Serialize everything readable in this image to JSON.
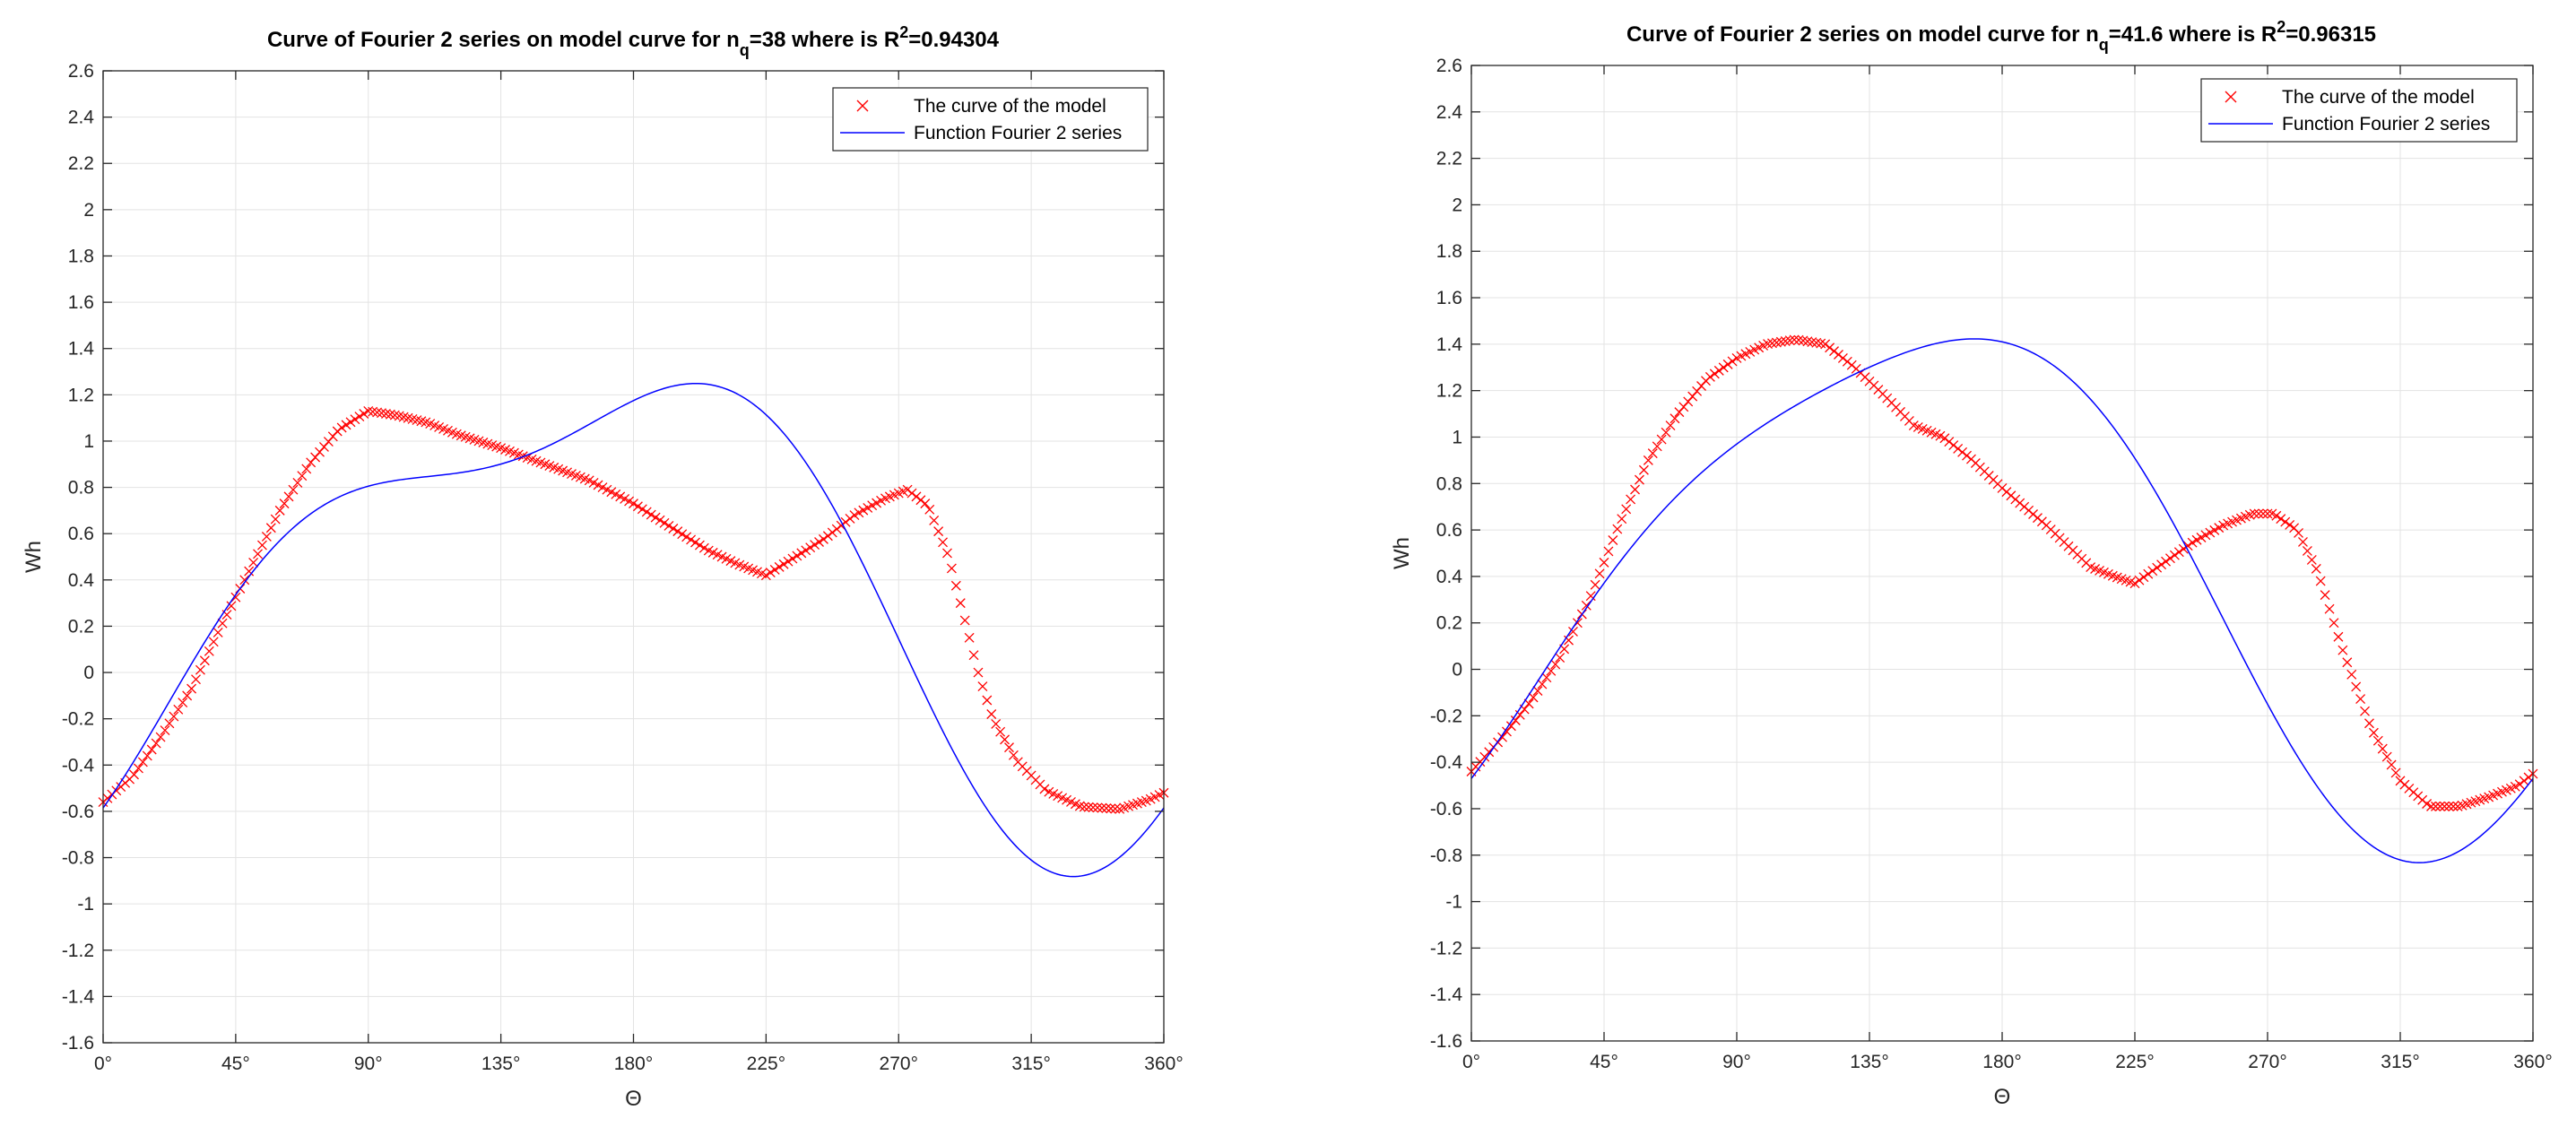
{
  "chart_data": [
    {
      "type": "line",
      "title": {
        "prefix": "Curve of Fourier 2 series on model curve for n",
        "subscript": "q",
        "middle": "=38 where is R",
        "superscript": "2",
        "suffix": "=0.94304"
      },
      "xlabel": "Θ",
      "ylabel": "Wh",
      "xlim": [
        0,
        360
      ],
      "ylim": [
        -1.6,
        2.6
      ],
      "xticks": [
        0,
        45,
        90,
        135,
        180,
        225,
        270,
        315,
        360
      ],
      "xtick_labels": [
        "0°",
        "45°",
        "90°",
        "135°",
        "180°",
        "225°",
        "270°",
        "315°",
        "360°"
      ],
      "yticks": [
        -1.6,
        -1.4,
        -1.2,
        -1,
        -0.8,
        -0.6,
        -0.4,
        -0.2,
        0,
        0.2,
        0.4,
        0.6,
        0.8,
        1,
        1.2,
        1.4,
        1.6,
        1.8,
        2,
        2.2,
        2.4,
        2.6
      ],
      "ytick_labels": [
        "-1.6",
        "-1.4",
        "-1.2",
        "-1",
        "-0.8",
        "-0.6",
        "-0.4",
        "-0.2",
        "0",
        "0.2",
        "0.4",
        "0.6",
        "0.8",
        "1",
        "1.2",
        "1.4",
        "1.6",
        "1.8",
        "2",
        "2.2",
        "2.4",
        "2.6"
      ],
      "grid": true,
      "legend_position": "top-right",
      "series": [
        {
          "name": "The curve of the model",
          "marker": "x",
          "color": "#ff0000",
          "x_range": [
            0,
            360
          ],
          "x_step": 1.5,
          "keypoints": [
            [
              0,
              -0.56
            ],
            [
              10,
              -0.45
            ],
            [
              20,
              -0.27
            ],
            [
              30,
              -0.07
            ],
            [
              40,
              0.2
            ],
            [
              50,
              0.45
            ],
            [
              60,
              0.7
            ],
            [
              70,
              0.9
            ],
            [
              80,
              1.05
            ],
            [
              90,
              1.13
            ],
            [
              100,
              1.11
            ],
            [
              110,
              1.08
            ],
            [
              120,
              1.03
            ],
            [
              135,
              0.97
            ],
            [
              150,
              0.9
            ],
            [
              165,
              0.83
            ],
            [
              180,
              0.73
            ],
            [
              195,
              0.61
            ],
            [
              205,
              0.53
            ],
            [
              215,
              0.47
            ],
            [
              225,
              0.42
            ],
            [
              235,
              0.5
            ],
            [
              245,
              0.58
            ],
            [
              255,
              0.68
            ],
            [
              265,
              0.75
            ],
            [
              273,
              0.79
            ],
            [
              280,
              0.72
            ],
            [
              287,
              0.5
            ],
            [
              292,
              0.25
            ],
            [
              297,
              0.0
            ],
            [
              302,
              -0.2
            ],
            [
              310,
              -0.38
            ],
            [
              320,
              -0.51
            ],
            [
              332,
              -0.58
            ],
            [
              345,
              -0.59
            ],
            [
              355,
              -0.55
            ],
            [
              360,
              -0.52
            ]
          ]
        },
        {
          "name": "Function Fourier 2 series",
          "color": "#0000ff",
          "fourier": {
            "a0": 0.385,
            "a1": -0.88,
            "b1": 0.33,
            "a2": -0.09,
            "b2": 0.34
          }
        }
      ]
    },
    {
      "type": "line",
      "title": {
        "prefix": "Curve of Fourier 2 series on model curve for n",
        "subscript": "q",
        "middle": "=41.6 where is R",
        "superscript": "2",
        "suffix": "=0.96315"
      },
      "xlabel": "Θ",
      "ylabel": "Wh",
      "xlim": [
        0,
        360
      ],
      "ylim": [
        -1.6,
        2.6
      ],
      "xticks": [
        0,
        45,
        90,
        135,
        180,
        225,
        270,
        315,
        360
      ],
      "xtick_labels": [
        "0°",
        "45°",
        "90°",
        "135°",
        "180°",
        "225°",
        "270°",
        "315°",
        "360°"
      ],
      "yticks": [
        -1.6,
        -1.4,
        -1.2,
        -1,
        -0.8,
        -0.6,
        -0.4,
        -0.2,
        0,
        0.2,
        0.4,
        0.6,
        0.8,
        1,
        1.2,
        1.4,
        1.6,
        1.8,
        2,
        2.2,
        2.4,
        2.6
      ],
      "ytick_labels": [
        "-1.6",
        "-1.4",
        "-1.2",
        "-1",
        "-0.8",
        "-0.6",
        "-0.4",
        "-0.2",
        "0",
        "0.2",
        "0.4",
        "0.6",
        "0.8",
        "1",
        "1.2",
        "1.4",
        "1.6",
        "1.8",
        "2",
        "2.2",
        "2.4",
        "2.6"
      ],
      "grid": true,
      "legend_position": "top-right",
      "series": [
        {
          "name": "The curve of the model",
          "marker": "x",
          "color": "#ff0000",
          "x_range": [
            0,
            360
          ],
          "x_step": 1.5,
          "keypoints": [
            [
              0,
              -0.44
            ],
            [
              10,
              -0.3
            ],
            [
              20,
              -0.14
            ],
            [
              30,
              0.05
            ],
            [
              40,
              0.3
            ],
            [
              50,
              0.62
            ],
            [
              60,
              0.9
            ],
            [
              70,
              1.1
            ],
            [
              80,
              1.25
            ],
            [
              90,
              1.34
            ],
            [
              100,
              1.4
            ],
            [
              110,
              1.42
            ],
            [
              120,
              1.4
            ],
            [
              130,
              1.3
            ],
            [
              140,
              1.18
            ],
            [
              150,
              1.05
            ],
            [
              160,
              1.0
            ],
            [
              170,
              0.9
            ],
            [
              180,
              0.78
            ],
            [
              195,
              0.62
            ],
            [
              210,
              0.44
            ],
            [
              218,
              0.4
            ],
            [
              225,
              0.37
            ],
            [
              235,
              0.46
            ],
            [
              245,
              0.55
            ],
            [
              255,
              0.62
            ],
            [
              265,
              0.67
            ],
            [
              272,
              0.67
            ],
            [
              280,
              0.6
            ],
            [
              287,
              0.42
            ],
            [
              295,
              0.1
            ],
            [
              305,
              -0.25
            ],
            [
              315,
              -0.48
            ],
            [
              325,
              -0.59
            ],
            [
              335,
              -0.59
            ],
            [
              345,
              -0.55
            ],
            [
              355,
              -0.5
            ],
            [
              360,
              -0.45
            ]
          ]
        },
        {
          "name": "Function Fourier 2 series",
          "color": "#0000ff",
          "fourier": {
            "a0": 0.44,
            "a1": -0.94,
            "b1": 0.56,
            "a2": 0.03,
            "b2": 0.2
          }
        }
      ]
    }
  ]
}
